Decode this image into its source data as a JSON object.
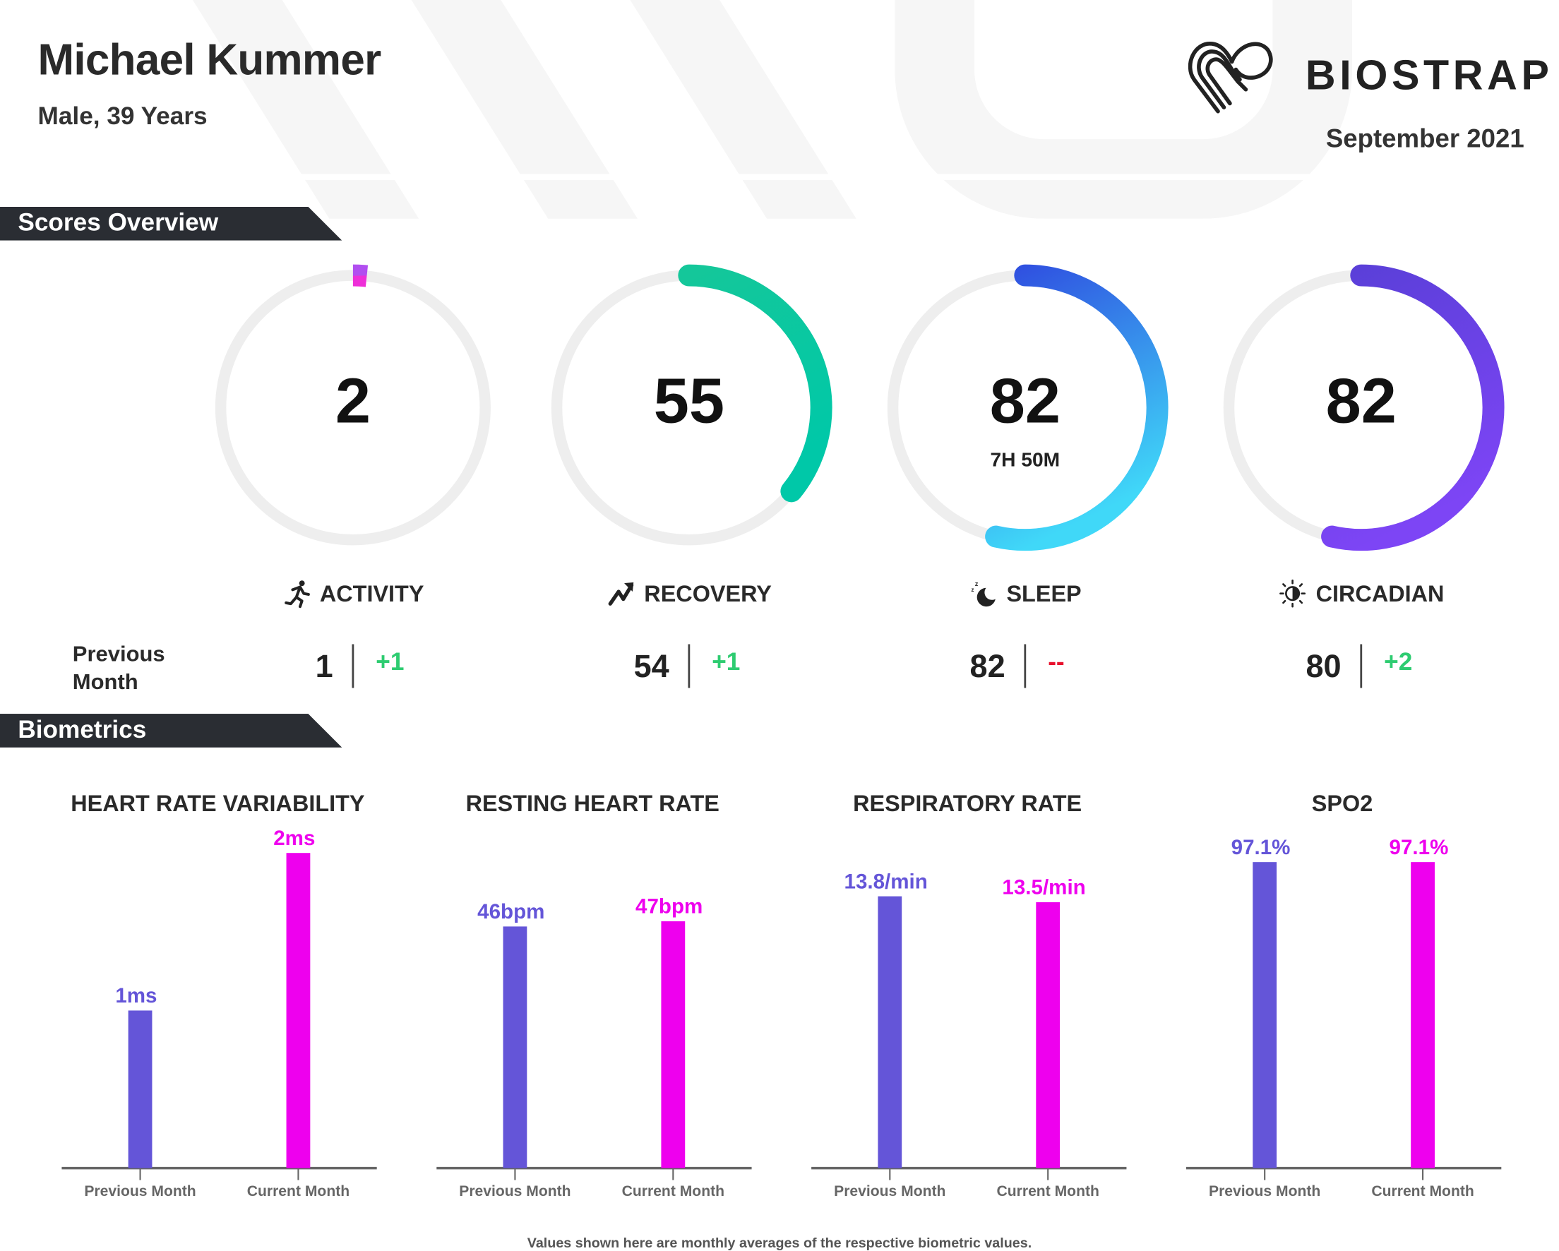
{
  "header": {
    "name": "Michael Kummer",
    "subtitle": "Male, 39 Years",
    "brand": "BIOSTRAP",
    "period": "September 2021"
  },
  "sections": {
    "scores": "Scores Overview",
    "biometrics": "Biometrics"
  },
  "scores": [
    {
      "label": "ACTIVITY",
      "icon": "running-person-icon",
      "score": "2",
      "fraction": 0.02,
      "previous": "1",
      "delta": "+1",
      "delta_color": "#2ecc71",
      "colors": [
        "#b14ef0",
        "#ee2fd8"
      ]
    },
    {
      "label": "RECOVERY",
      "icon": "trend-up-arrow-icon",
      "score": "55",
      "fraction": 0.55,
      "previous": "54",
      "delta": "+1",
      "delta_color": "#2ecc71",
      "colors": [
        "#14c79a",
        "#00c8a8"
      ]
    },
    {
      "label": "SLEEP",
      "icon": "moon-zzz-icon",
      "score": "82",
      "duration": "7H 50M",
      "fraction": 0.82,
      "previous": "82",
      "delta": "--",
      "delta_color": "#e8112d",
      "colors": [
        "#2f4fe0",
        "#40d8f8"
      ]
    },
    {
      "label": "CIRCADIAN",
      "icon": "sun-moon-icon",
      "score": "82",
      "fraction": 0.82,
      "previous": "80",
      "delta": "+2",
      "delta_color": "#2ecc71",
      "colors": [
        "#5a3fd8",
        "#7d45f5"
      ]
    }
  ],
  "previous_label": [
    "Previous",
    "Month"
  ],
  "colors": {
    "previous": "#6455d8",
    "current": "#ee00ee",
    "track": "#eeeeee"
  },
  "chart_data": [
    {
      "type": "bar",
      "title": "HEART RATE VARIABILITY",
      "categories": [
        "Previous Month",
        "Current Month"
      ],
      "values": [
        1,
        2
      ],
      "labels": [
        "1ms",
        "2ms"
      ],
      "ylim": [
        0,
        2
      ]
    },
    {
      "type": "bar",
      "title": "RESTING HEART RATE",
      "categories": [
        "Previous Month",
        "Current Month"
      ],
      "values": [
        46,
        47
      ],
      "labels": [
        "46bpm",
        "47bpm"
      ],
      "ylim": [
        0,
        60
      ]
    },
    {
      "type": "bar",
      "title": "RESPIRATORY RATE",
      "categories": [
        "Previous Month",
        "Current Month"
      ],
      "values": [
        13.8,
        13.5
      ],
      "labels": [
        "13.8/min",
        "13.5/min"
      ],
      "ylim": [
        0,
        16
      ]
    },
    {
      "type": "bar",
      "title": "SPO2",
      "categories": [
        "Previous Month",
        "Current Month"
      ],
      "values": [
        97.1,
        97.1
      ],
      "labels": [
        "97.1%",
        "97.1%"
      ],
      "ylim": [
        0,
        100
      ]
    }
  ],
  "footnote": "Values shown here are monthly averages of the respective biometric values."
}
